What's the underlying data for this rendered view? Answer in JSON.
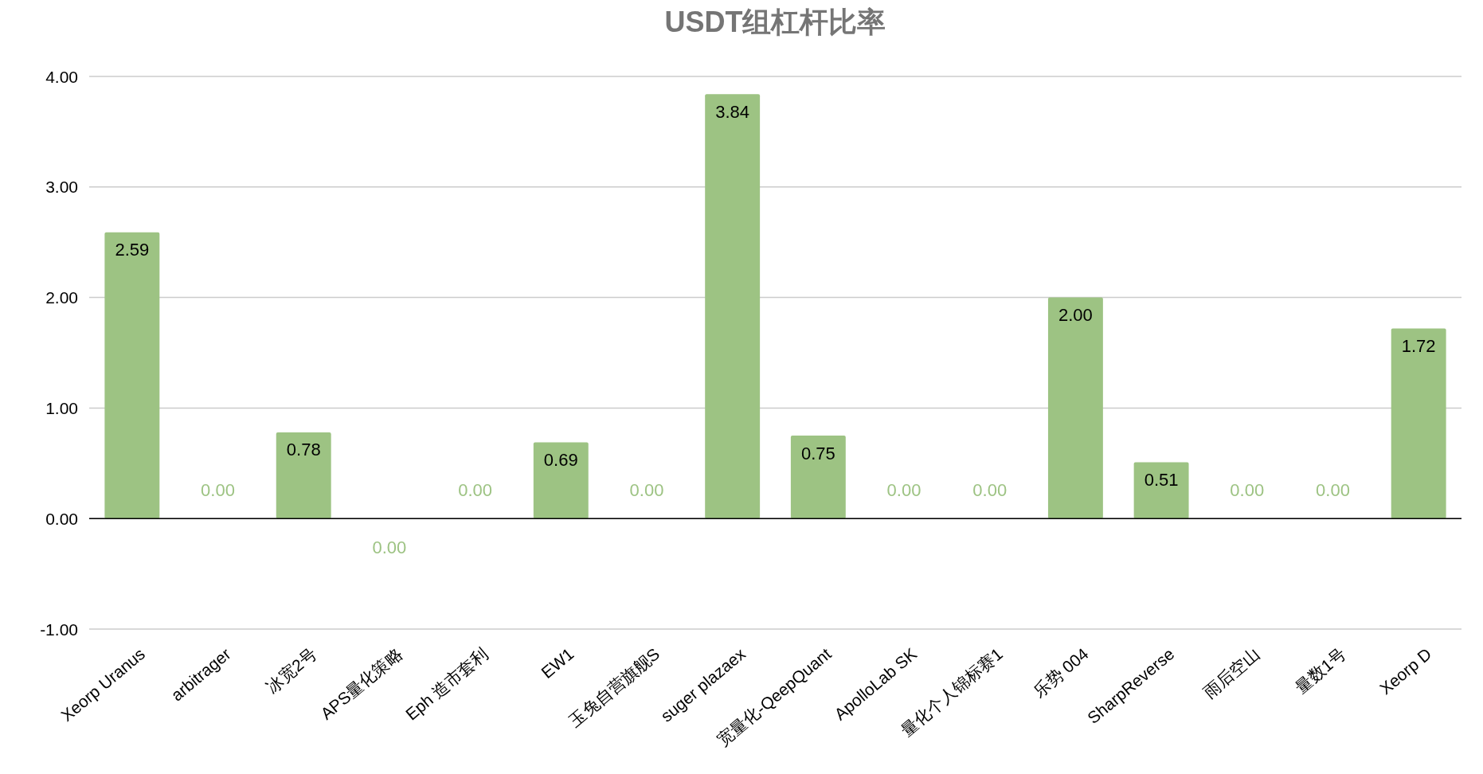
{
  "chart_data": {
    "type": "bar",
    "title": "USDT组杠杆比率",
    "categories": [
      "Xeorp Uranus",
      "arbitrager",
      "冰宽2号",
      "APS量化策略",
      "Eph 造市套利",
      "EW1",
      "玉兔自营旗舰S",
      "suger plazaex",
      "宽量化-QeepQuant",
      "ApolloLab SK",
      "量化个人锦标赛1",
      "乐势 004",
      "SharpReverse",
      "雨后空山",
      "量数1号",
      "Xeorp D"
    ],
    "values": [
      2.59,
      0,
      0.78,
      -0.001,
      0,
      0.69,
      0,
      3.84,
      0.75,
      0,
      0,
      2.0,
      0.51,
      0,
      0,
      1.72
    ],
    "value_labels": [
      "2.59",
      "0.00",
      "0.78",
      "0.00",
      "0.00",
      "0.69",
      "0.00",
      "3.84",
      "0.75",
      "0.00",
      "0.00",
      "2.00",
      "0.51",
      "0.00",
      "0.00",
      "1.72"
    ],
    "color": "#9dc383",
    "ylim": [
      -1,
      4
    ],
    "yticks": [
      {
        "value": -1,
        "label": "-1.00"
      },
      {
        "value": 0,
        "label": "0.00"
      },
      {
        "value": 1,
        "label": "1.00"
      },
      {
        "value": 2,
        "label": "2.00"
      },
      {
        "value": 3,
        "label": "3.00"
      },
      {
        "value": 4,
        "label": "4.00"
      }
    ],
    "grid": "y"
  }
}
